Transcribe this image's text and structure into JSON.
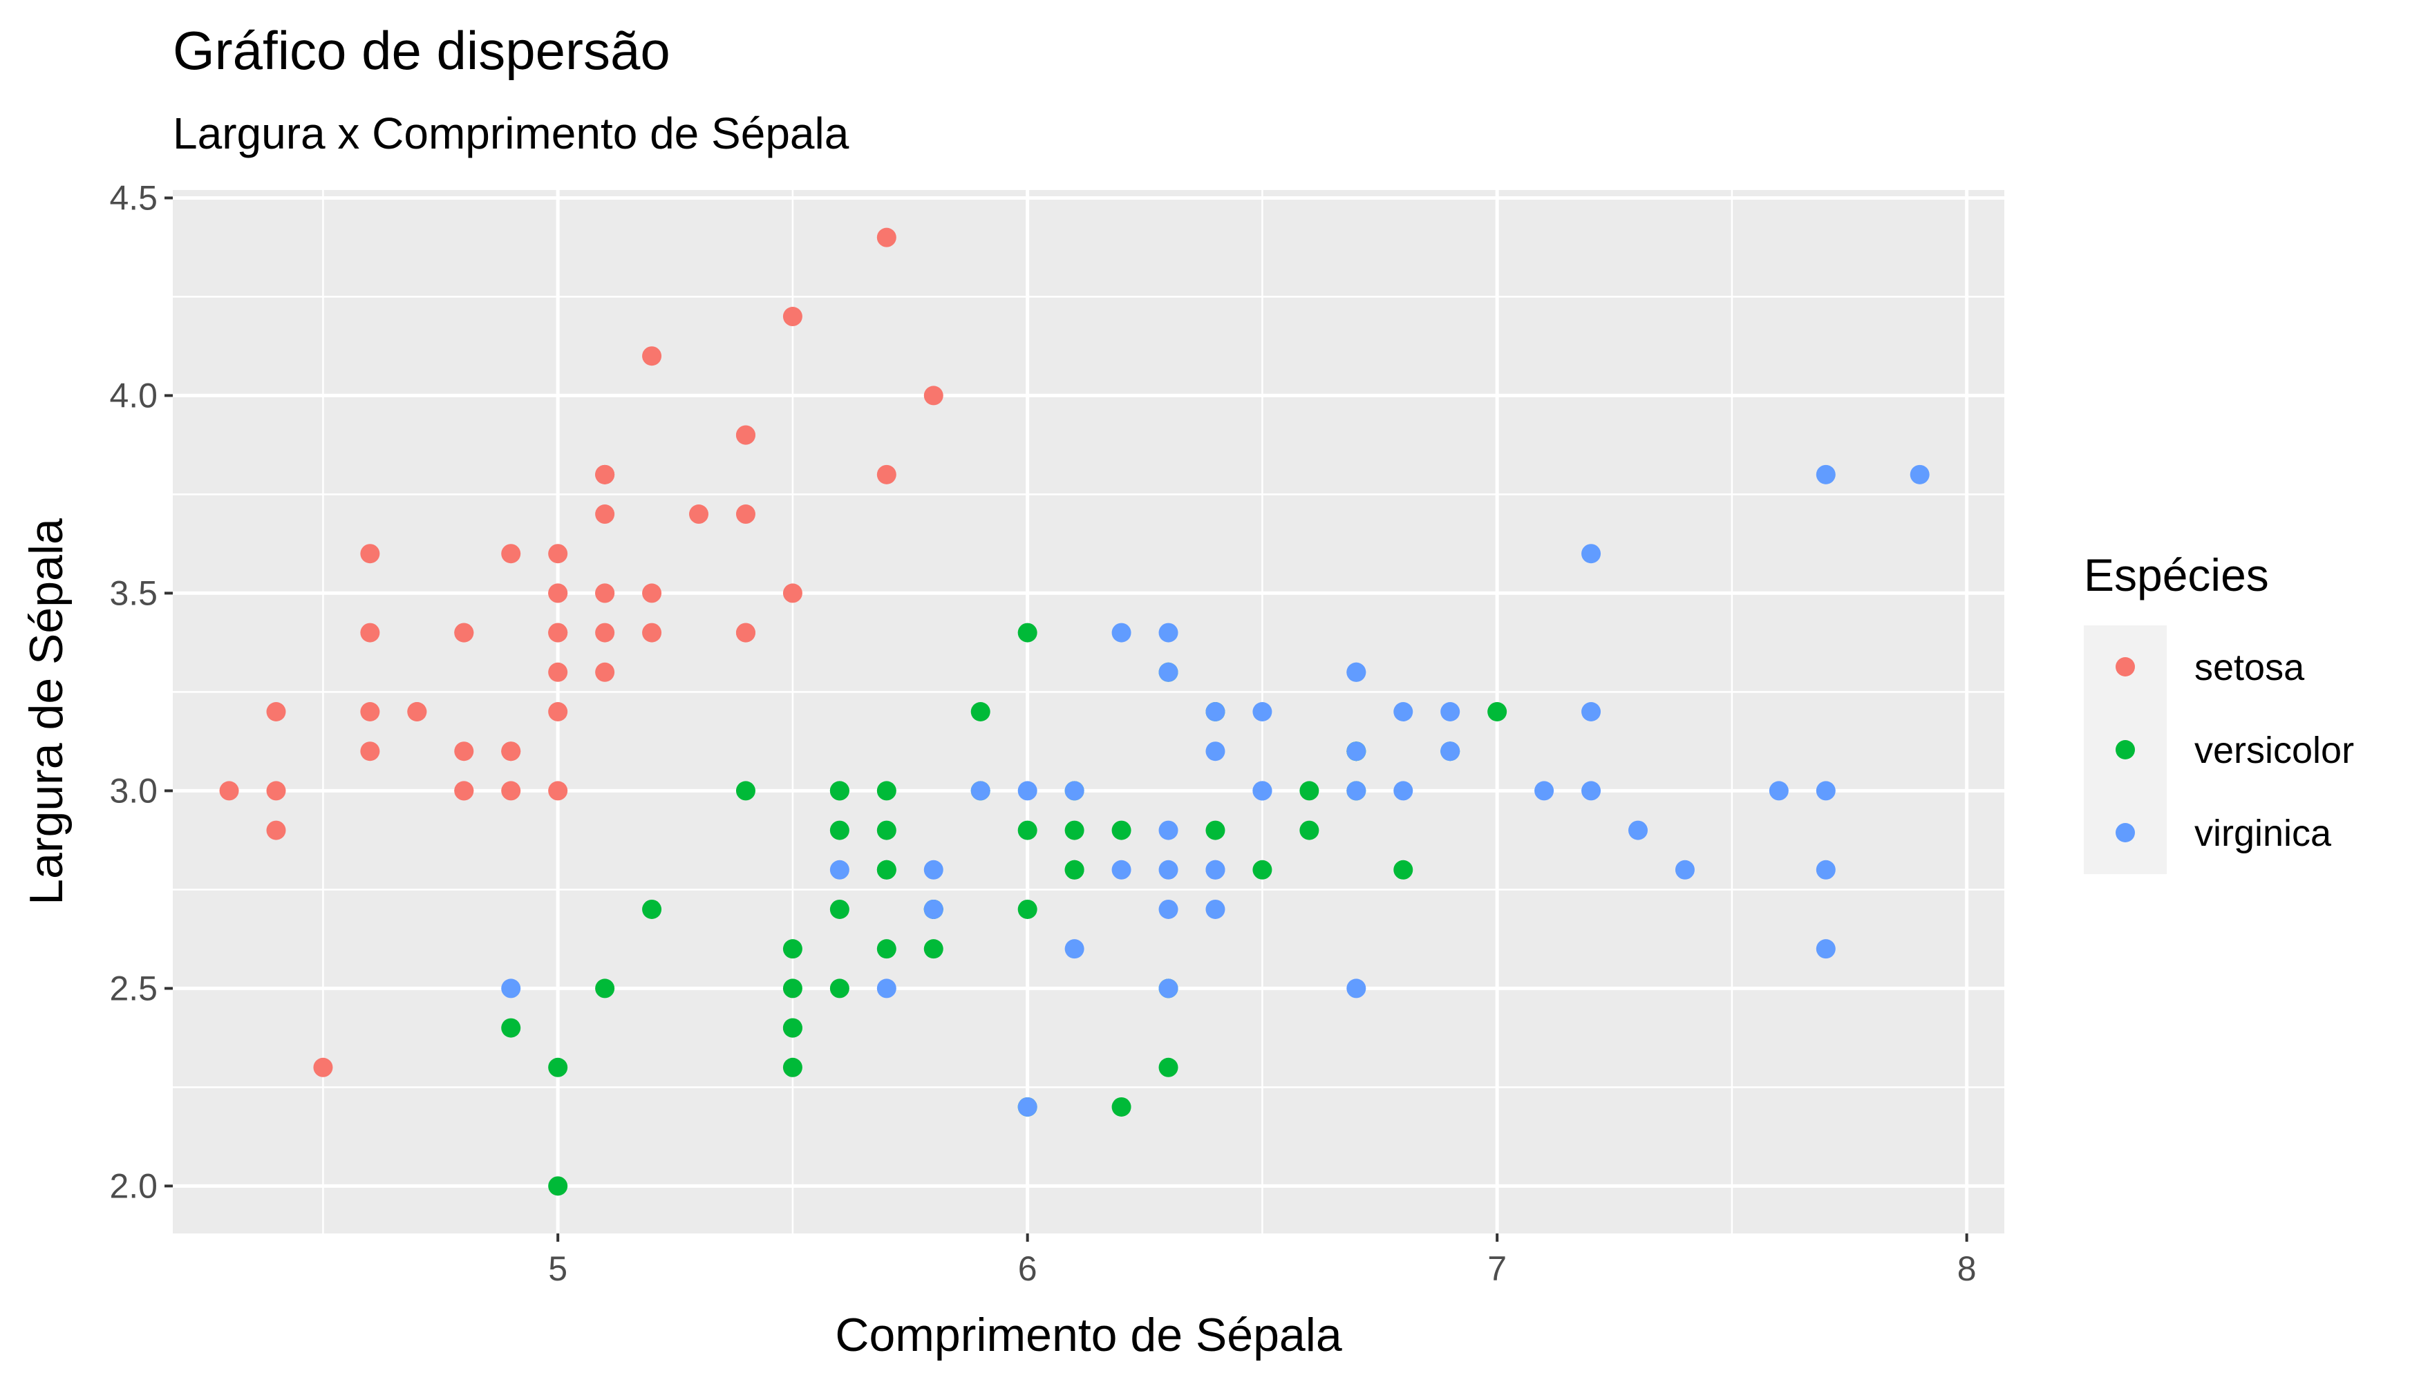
{
  "chart_data": {
    "type": "scatter",
    "title": "Gráfico de dispersão",
    "subtitle": "Largura x Comprimento de Sépala",
    "xlabel": "Comprimento de Sépala",
    "ylabel": "Largura de Sépala",
    "xlim": [
      4.18,
      8.08
    ],
    "ylim": [
      1.88,
      4.52
    ],
    "x_ticks": [
      5,
      6,
      7,
      8
    ],
    "y_ticks": [
      2.0,
      2.5,
      3.0,
      3.5,
      4.0,
      4.5
    ],
    "x_tick_labels": [
      "5",
      "6",
      "7",
      "8"
    ],
    "y_tick_labels": [
      "2.0",
      "2.5",
      "3.0",
      "3.5",
      "4.0",
      "4.5"
    ],
    "grid": true,
    "legend": {
      "title": "Espécies",
      "position": "right"
    },
    "series": [
      {
        "name": "setosa",
        "color": "#F8766D",
        "points": [
          [
            5.1,
            3.5
          ],
          [
            4.9,
            3.0
          ],
          [
            4.7,
            3.2
          ],
          [
            4.6,
            3.1
          ],
          [
            5.0,
            3.6
          ],
          [
            5.4,
            3.9
          ],
          [
            4.6,
            3.4
          ],
          [
            5.0,
            3.4
          ],
          [
            4.4,
            2.9
          ],
          [
            4.9,
            3.1
          ],
          [
            5.4,
            3.7
          ],
          [
            4.8,
            3.4
          ],
          [
            4.8,
            3.0
          ],
          [
            4.3,
            3.0
          ],
          [
            5.8,
            4.0
          ],
          [
            5.7,
            4.4
          ],
          [
            5.4,
            3.9
          ],
          [
            5.1,
            3.5
          ],
          [
            5.7,
            3.8
          ],
          [
            5.1,
            3.8
          ],
          [
            5.4,
            3.4
          ],
          [
            5.1,
            3.7
          ],
          [
            4.6,
            3.6
          ],
          [
            5.1,
            3.3
          ],
          [
            4.8,
            3.4
          ],
          [
            5.0,
            3.0
          ],
          [
            5.0,
            3.4
          ],
          [
            5.2,
            3.5
          ],
          [
            5.2,
            3.4
          ],
          [
            4.7,
            3.2
          ],
          [
            4.8,
            3.1
          ],
          [
            5.4,
            3.4
          ],
          [
            5.2,
            4.1
          ],
          [
            5.5,
            4.2
          ],
          [
            4.9,
            3.1
          ],
          [
            5.0,
            3.2
          ],
          [
            5.5,
            3.5
          ],
          [
            4.9,
            3.6
          ],
          [
            4.4,
            3.0
          ],
          [
            5.1,
            3.4
          ],
          [
            5.0,
            3.5
          ],
          [
            4.5,
            2.3
          ],
          [
            4.4,
            3.2
          ],
          [
            5.0,
            3.5
          ],
          [
            5.1,
            3.8
          ],
          [
            4.8,
            3.0
          ],
          [
            5.1,
            3.8
          ],
          [
            4.6,
            3.2
          ],
          [
            5.3,
            3.7
          ],
          [
            5.0,
            3.3
          ]
        ]
      },
      {
        "name": "versicolor",
        "color": "#00BA38",
        "points": [
          [
            7.0,
            3.2
          ],
          [
            6.4,
            3.2
          ],
          [
            6.9,
            3.1
          ],
          [
            5.5,
            2.3
          ],
          [
            6.5,
            2.8
          ],
          [
            5.7,
            2.8
          ],
          [
            6.3,
            3.3
          ],
          [
            4.9,
            2.4
          ],
          [
            6.6,
            2.9
          ],
          [
            5.2,
            2.7
          ],
          [
            5.0,
            2.0
          ],
          [
            5.9,
            3.0
          ],
          [
            6.0,
            2.2
          ],
          [
            6.1,
            2.9
          ],
          [
            5.6,
            2.9
          ],
          [
            6.7,
            3.1
          ],
          [
            5.6,
            3.0
          ],
          [
            5.8,
            2.7
          ],
          [
            6.2,
            2.2
          ],
          [
            5.6,
            2.5
          ],
          [
            5.9,
            3.2
          ],
          [
            6.1,
            2.8
          ],
          [
            6.3,
            2.5
          ],
          [
            6.1,
            2.8
          ],
          [
            6.4,
            2.9
          ],
          [
            6.6,
            3.0
          ],
          [
            6.8,
            2.8
          ],
          [
            6.7,
            3.0
          ],
          [
            6.0,
            2.9
          ],
          [
            5.7,
            2.6
          ],
          [
            5.5,
            2.4
          ],
          [
            5.5,
            2.4
          ],
          [
            5.8,
            2.7
          ],
          [
            6.0,
            2.7
          ],
          [
            5.4,
            3.0
          ],
          [
            6.0,
            3.4
          ],
          [
            6.7,
            3.1
          ],
          [
            6.3,
            2.3
          ],
          [
            5.6,
            3.0
          ],
          [
            5.5,
            2.5
          ],
          [
            5.5,
            2.6
          ],
          [
            6.1,
            3.0
          ],
          [
            5.8,
            2.6
          ],
          [
            5.0,
            2.3
          ],
          [
            5.6,
            2.7
          ],
          [
            5.7,
            3.0
          ],
          [
            5.7,
            2.9
          ],
          [
            6.2,
            2.9
          ],
          [
            5.1,
            2.5
          ],
          [
            5.7,
            2.8
          ]
        ]
      },
      {
        "name": "virginica",
        "color": "#619CFF",
        "points": [
          [
            6.3,
            3.3
          ],
          [
            5.8,
            2.7
          ],
          [
            7.1,
            3.0
          ],
          [
            6.3,
            2.9
          ],
          [
            6.5,
            3.0
          ],
          [
            7.6,
            3.0
          ],
          [
            4.9,
            2.5
          ],
          [
            7.3,
            2.9
          ],
          [
            6.7,
            2.5
          ],
          [
            7.2,
            3.6
          ],
          [
            6.5,
            3.2
          ],
          [
            6.4,
            2.7
          ],
          [
            6.8,
            3.0
          ],
          [
            5.7,
            2.5
          ],
          [
            5.8,
            2.8
          ],
          [
            6.4,
            3.2
          ],
          [
            6.5,
            3.0
          ],
          [
            7.7,
            3.8
          ],
          [
            7.7,
            2.6
          ],
          [
            6.0,
            2.2
          ],
          [
            6.9,
            3.2
          ],
          [
            5.6,
            2.8
          ],
          [
            7.7,
            2.8
          ],
          [
            6.3,
            2.7
          ],
          [
            6.7,
            3.3
          ],
          [
            7.2,
            3.2
          ],
          [
            6.2,
            2.8
          ],
          [
            6.1,
            3.0
          ],
          [
            6.4,
            2.8
          ],
          [
            7.2,
            3.0
          ],
          [
            7.4,
            2.8
          ],
          [
            7.9,
            3.8
          ],
          [
            6.4,
            2.8
          ],
          [
            6.3,
            2.8
          ],
          [
            6.1,
            2.6
          ],
          [
            7.7,
            3.0
          ],
          [
            6.3,
            3.4
          ],
          [
            6.4,
            3.1
          ],
          [
            6.0,
            3.0
          ],
          [
            6.9,
            3.1
          ],
          [
            6.7,
            3.1
          ],
          [
            6.9,
            3.1
          ],
          [
            5.8,
            2.7
          ],
          [
            6.8,
            3.2
          ],
          [
            6.7,
            3.3
          ],
          [
            6.7,
            3.0
          ],
          [
            6.3,
            2.5
          ],
          [
            6.5,
            3.0
          ],
          [
            6.2,
            3.4
          ],
          [
            5.9,
            3.0
          ]
        ]
      }
    ]
  }
}
